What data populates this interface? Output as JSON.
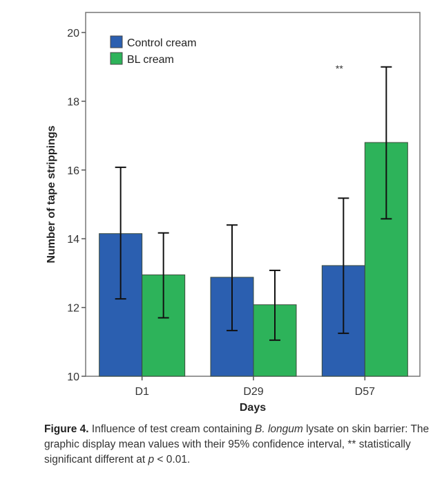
{
  "chart_data": {
    "type": "bar",
    "title": "",
    "xlabel": "Days",
    "ylabel": "Number of tape strippings",
    "ylim": [
      10,
      20
    ],
    "yticks": [
      10,
      12,
      14,
      16,
      18,
      20
    ],
    "categories": [
      "D1",
      "D29",
      "D57"
    ],
    "series": [
      {
        "name": "Control cream",
        "color": "#2b5fb0",
        "values": [
          14.15,
          12.88,
          13.22
        ],
        "ci_low": [
          12.25,
          11.33,
          11.25
        ],
        "ci_high": [
          16.08,
          14.4,
          15.18
        ]
      },
      {
        "name": "BL cream",
        "color": "#2db35a",
        "values": [
          12.95,
          12.08,
          16.8
        ],
        "ci_low": [
          11.7,
          11.05,
          14.58
        ],
        "ci_high": [
          14.17,
          13.08,
          19.0
        ]
      }
    ],
    "annotations": [
      {
        "text": "**",
        "category": "D57"
      }
    ],
    "legend": "top-left",
    "grid": false
  },
  "caption": {
    "label": "Figure 4.",
    "part1": " Influence of test cream containing ",
    "italic1": "B. longum",
    "part2": " lysate on skin barrier: The graphic display mean values with their 95% confidence interval, ** statistically significant different at ",
    "italic2": "p",
    "part3": " < 0.01."
  }
}
